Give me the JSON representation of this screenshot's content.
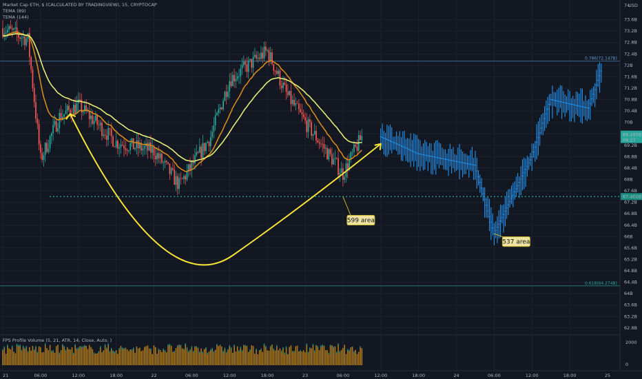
{
  "header": {
    "symbol_line": "Market Cap ETH, $ (CALCULATED BY TRADINGVIEW), 15, CRYPTOCAP",
    "tema1_label": "TEMA (89)",
    "tema2_label": "TEMA (144)",
    "currency": "USD"
  },
  "indicator": {
    "label": "FPS Profile Volume (5, 21, ATR, 14, Close, Auto, )",
    "axis_labels": [
      "2000",
      "0"
    ]
  },
  "price_axis": {
    "labels": [
      "73.6B",
      "73.2B",
      "72.8B",
      "72.4B",
      "72B",
      "71.6B",
      "71.2B",
      "70.8B",
      "70.4B",
      "70B",
      "69.6B",
      "69.2B",
      "68.8B",
      "68.4B",
      "68B",
      "67.6B",
      "67.2B",
      "66.8B",
      "66.4B",
      "66B",
      "65.6B",
      "65.2B",
      "64.8B",
      "64.4B",
      "64B",
      "63.6B",
      "63.2B",
      "62.8B"
    ],
    "top_value": "74",
    "badges": {
      "current": "69.495B",
      "current_sub": "09:27",
      "support": "67.402B"
    }
  },
  "time_axis": {
    "labels": [
      "21",
      "06:00",
      "12:00",
      "18:00",
      "22",
      "06:00",
      "12:00",
      "18:00",
      "23",
      "06:00",
      "12:00",
      "18:00",
      "24",
      "06:00",
      "12:00",
      "18:00",
      "25"
    ]
  },
  "fib_levels": [
    {
      "label": "0.786(72.147B)",
      "color": "#5b9bd5"
    },
    {
      "label": "0.618(64.274B)",
      "color": "#26a69a"
    }
  ],
  "support_level": {
    "color": "#26a69a"
  },
  "annotations": [
    {
      "label": "599 area"
    },
    {
      "label": "537 area"
    }
  ],
  "colors": {
    "background": "#131722",
    "bull": "#26a69a",
    "bear": "#ef5350",
    "projection": "#2196f3",
    "tema89": "#e6ed76",
    "tema144": "#d88a1a",
    "drawing": "#f5e33a",
    "volume": "#c98a1a"
  },
  "chart_data": {
    "type": "candlestick",
    "title": "Market Cap ETH, $ (CALCULATED BY TRADINGVIEW), 15, CRYPTOCAP",
    "ylabel": "USD",
    "ylim": [
      62.8,
      74.0
    ],
    "y_unit": "B",
    "grid": true,
    "price_path": [
      {
        "t": "21 00:00",
        "v": 73.3
      },
      {
        "t": "21 04:00",
        "v": 72.9
      },
      {
        "t": "21 06:00",
        "v": 68.7
      },
      {
        "t": "21 09:00",
        "v": 70.2
      },
      {
        "t": "21 12:00",
        "v": 70.6
      },
      {
        "t": "21 18:00",
        "v": 69.3
      },
      {
        "t": "22 00:00",
        "v": 69.0
      },
      {
        "t": "22 04:00",
        "v": 67.8
      },
      {
        "t": "22 09:00",
        "v": 69.5
      },
      {
        "t": "22 12:00",
        "v": 71.5
      },
      {
        "t": "22 18:00",
        "v": 72.5
      },
      {
        "t": "22 21:00",
        "v": 71.0
      },
      {
        "t": "23 00:00",
        "v": 70.0
      },
      {
        "t": "23 06:00",
        "v": 68.2
      },
      {
        "t": "23 09:00",
        "v": 69.5
      }
    ],
    "projection_path": [
      {
        "t": "23 12:00",
        "v": 69.5
      },
      {
        "t": "23 18:00",
        "v": 68.9
      },
      {
        "t": "24 03:00",
        "v": 68.5
      },
      {
        "t": "24 06:00",
        "v": 66.1
      },
      {
        "t": "24 12:00",
        "v": 68.8
      },
      {
        "t": "24 15:00",
        "v": 70.8
      },
      {
        "t": "24 21:00",
        "v": 70.5
      },
      {
        "t": "24 23:00",
        "v": 71.8
      }
    ],
    "horizontal_levels": [
      {
        "name": "0.786",
        "value": 72.147
      },
      {
        "name": "0.618",
        "value": 64.274
      },
      {
        "name": "support",
        "value": 67.402
      }
    ]
  }
}
